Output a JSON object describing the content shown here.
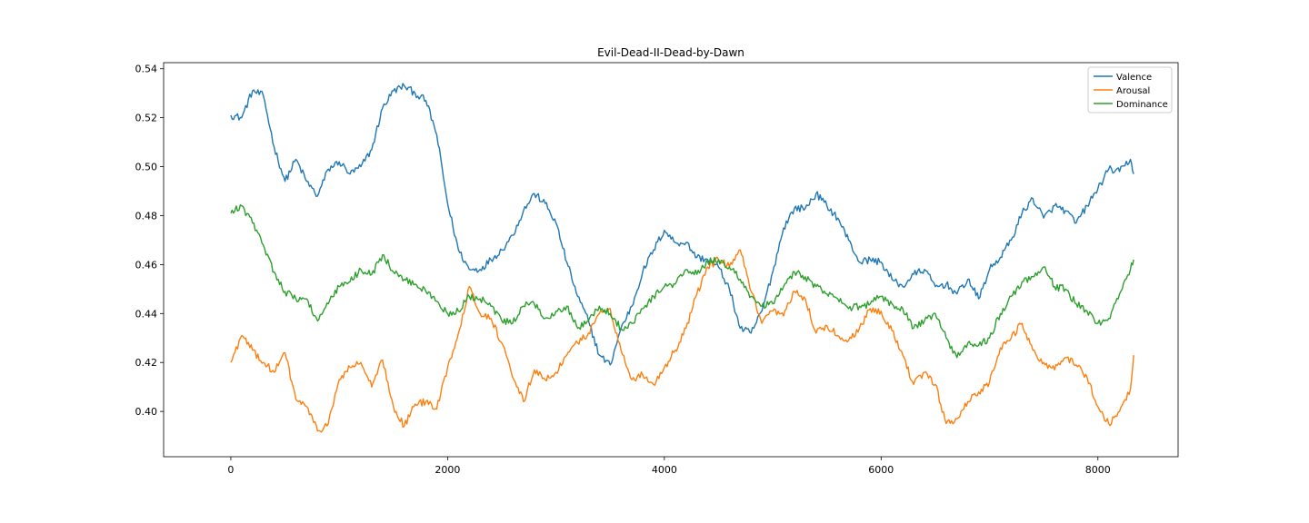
{
  "chart_data": {
    "type": "line",
    "title": "Evil-Dead-II-Dead-by-Dawn",
    "xlabel": "",
    "ylabel": "",
    "xlim": [
      -620,
      8740
    ],
    "ylim": [
      0.3815,
      0.5425
    ],
    "x_ticks": [
      0,
      2000,
      4000,
      6000,
      8000
    ],
    "x_tick_labels": [
      "0",
      "2000",
      "4000",
      "6000",
      "8000"
    ],
    "y_ticks": [
      0.4,
      0.42,
      0.44,
      0.46,
      0.48,
      0.5,
      0.52,
      0.54
    ],
    "y_tick_labels": [
      "0.40",
      "0.42",
      "0.44",
      "0.46",
      "0.48",
      "0.50",
      "0.52",
      "0.54"
    ],
    "grid": false,
    "legend_position": "top-right",
    "series": [
      {
        "name": "Valence",
        "color": "#1f77b4",
        "x": [
          0,
          100,
          200,
          300,
          400,
          500,
          600,
          700,
          800,
          900,
          1000,
          1100,
          1200,
          1300,
          1400,
          1500,
          1600,
          1700,
          1800,
          1900,
          2000,
          2100,
          2200,
          2300,
          2400,
          2500,
          2600,
          2700,
          2800,
          2900,
          3000,
          3100,
          3200,
          3300,
          3400,
          3500,
          3600,
          3700,
          3800,
          3900,
          4000,
          4100,
          4200,
          4300,
          4400,
          4500,
          4600,
          4700,
          4800,
          4900,
          5000,
          5100,
          5200,
          5300,
          5400,
          5500,
          5600,
          5700,
          5800,
          5900,
          6000,
          6100,
          6200,
          6300,
          6400,
          6500,
          6600,
          6700,
          6800,
          6900,
          7000,
          7100,
          7200,
          7300,
          7400,
          7500,
          7600,
          7700,
          7800,
          7900,
          8000,
          8100,
          8200,
          8300,
          8330
        ],
        "values": [
          0.521,
          0.52,
          0.531,
          0.529,
          0.508,
          0.494,
          0.503,
          0.494,
          0.488,
          0.499,
          0.502,
          0.497,
          0.5,
          0.507,
          0.524,
          0.531,
          0.533,
          0.53,
          0.527,
          0.513,
          0.485,
          0.466,
          0.458,
          0.458,
          0.462,
          0.466,
          0.472,
          0.482,
          0.489,
          0.485,
          0.477,
          0.461,
          0.447,
          0.437,
          0.423,
          0.419,
          0.434,
          0.443,
          0.457,
          0.466,
          0.474,
          0.469,
          0.469,
          0.463,
          0.462,
          0.459,
          0.45,
          0.434,
          0.432,
          0.441,
          0.457,
          0.475,
          0.483,
          0.483,
          0.489,
          0.484,
          0.479,
          0.47,
          0.461,
          0.462,
          0.461,
          0.454,
          0.451,
          0.456,
          0.458,
          0.451,
          0.452,
          0.448,
          0.454,
          0.446,
          0.458,
          0.463,
          0.47,
          0.481,
          0.487,
          0.479,
          0.484,
          0.482,
          0.477,
          0.484,
          0.491,
          0.499,
          0.498,
          0.503,
          0.497
        ]
      },
      {
        "name": "Arousal",
        "color": "#ff7f0e",
        "x": [
          0,
          100,
          200,
          300,
          400,
          500,
          600,
          700,
          800,
          900,
          1000,
          1100,
          1200,
          1300,
          1400,
          1500,
          1600,
          1700,
          1800,
          1900,
          2000,
          2100,
          2200,
          2300,
          2400,
          2500,
          2600,
          2700,
          2800,
          2900,
          3000,
          3100,
          3200,
          3300,
          3400,
          3500,
          3600,
          3700,
          3800,
          3900,
          4000,
          4100,
          4200,
          4300,
          4400,
          4500,
          4600,
          4700,
          4800,
          4900,
          5000,
          5100,
          5200,
          5300,
          5400,
          5500,
          5600,
          5700,
          5800,
          5900,
          6000,
          6100,
          6200,
          6300,
          6400,
          6500,
          6600,
          6700,
          6800,
          6900,
          7000,
          7100,
          7200,
          7300,
          7400,
          7500,
          7600,
          7700,
          7800,
          7900,
          8000,
          8100,
          8200,
          8300,
          8330
        ],
        "values": [
          0.42,
          0.431,
          0.425,
          0.42,
          0.416,
          0.424,
          0.405,
          0.402,
          0.392,
          0.395,
          0.413,
          0.418,
          0.42,
          0.41,
          0.421,
          0.402,
          0.394,
          0.403,
          0.404,
          0.401,
          0.418,
          0.432,
          0.451,
          0.44,
          0.438,
          0.428,
          0.414,
          0.404,
          0.417,
          0.413,
          0.416,
          0.423,
          0.428,
          0.432,
          0.44,
          0.442,
          0.425,
          0.413,
          0.415,
          0.411,
          0.418,
          0.425,
          0.434,
          0.448,
          0.459,
          0.462,
          0.459,
          0.466,
          0.449,
          0.436,
          0.441,
          0.439,
          0.449,
          0.446,
          0.432,
          0.435,
          0.431,
          0.429,
          0.434,
          0.442,
          0.441,
          0.433,
          0.423,
          0.411,
          0.416,
          0.411,
          0.395,
          0.397,
          0.404,
          0.408,
          0.412,
          0.426,
          0.43,
          0.436,
          0.425,
          0.42,
          0.417,
          0.422,
          0.419,
          0.414,
          0.402,
          0.395,
          0.4,
          0.409,
          0.423
        ]
      },
      {
        "name": "Dominance",
        "color": "#2ca02c",
        "x": [
          0,
          100,
          200,
          300,
          400,
          500,
          600,
          700,
          800,
          900,
          1000,
          1100,
          1200,
          1300,
          1400,
          1500,
          1600,
          1700,
          1800,
          1900,
          2000,
          2100,
          2200,
          2300,
          2400,
          2500,
          2600,
          2700,
          2800,
          2900,
          3000,
          3100,
          3200,
          3300,
          3400,
          3500,
          3600,
          3700,
          3800,
          3900,
          4000,
          4100,
          4200,
          4300,
          4400,
          4500,
          4600,
          4700,
          4800,
          4900,
          5000,
          5100,
          5200,
          5300,
          5400,
          5500,
          5600,
          5700,
          5800,
          5900,
          6000,
          6100,
          6200,
          6300,
          6400,
          6500,
          6600,
          6700,
          6800,
          6900,
          7000,
          7100,
          7200,
          7300,
          7400,
          7500,
          7600,
          7700,
          7800,
          7900,
          8000,
          8100,
          8200,
          8300,
          8330
        ],
        "values": [
          0.481,
          0.484,
          0.477,
          0.468,
          0.457,
          0.449,
          0.446,
          0.446,
          0.437,
          0.444,
          0.451,
          0.453,
          0.458,
          0.456,
          0.464,
          0.457,
          0.454,
          0.452,
          0.449,
          0.445,
          0.44,
          0.441,
          0.447,
          0.446,
          0.443,
          0.437,
          0.436,
          0.443,
          0.444,
          0.438,
          0.441,
          0.443,
          0.434,
          0.437,
          0.443,
          0.44,
          0.434,
          0.436,
          0.442,
          0.447,
          0.451,
          0.452,
          0.458,
          0.456,
          0.461,
          0.462,
          0.459,
          0.454,
          0.447,
          0.443,
          0.444,
          0.451,
          0.457,
          0.455,
          0.451,
          0.448,
          0.446,
          0.442,
          0.443,
          0.444,
          0.447,
          0.444,
          0.442,
          0.434,
          0.437,
          0.44,
          0.43,
          0.422,
          0.428,
          0.427,
          0.43,
          0.44,
          0.447,
          0.453,
          0.455,
          0.459,
          0.451,
          0.45,
          0.444,
          0.441,
          0.436,
          0.438,
          0.448,
          0.458,
          0.462
        ]
      }
    ]
  }
}
